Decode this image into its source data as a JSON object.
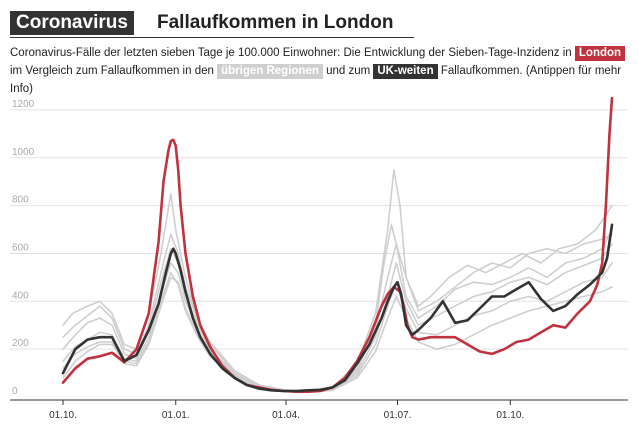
{
  "header": {
    "badge": "Coronavirus",
    "title": "Fallaufkommen in London"
  },
  "subtitle": {
    "part1": "Coronavirus-Fälle der letzten sieben Tage je 100.000 Einwohner: Die Entwicklung der Sieben-Tage-Inzidenz in",
    "london": "London",
    "part2": "im Vergleich zum Fallaufkommen in den",
    "regions": "übrigen Regionen",
    "part3": "und zum",
    "uk": "UK-weiten",
    "part4": "Fallaufkommen. (Antippen für mehr Info)"
  },
  "colors": {
    "london": "#c0323e",
    "regions": "#cfcfcf",
    "uk": "#333333",
    "grid": "#e2e2e2"
  },
  "chart_data": {
    "type": "line",
    "ylim": [
      0,
      1300
    ],
    "yticks": [
      0,
      200,
      400,
      600,
      800,
      1000,
      1200
    ],
    "xlim": [
      0,
      448
    ],
    "xticks": [
      {
        "x": 0,
        "label": "01.10."
      },
      {
        "x": 92,
        "label": "01.01."
      },
      {
        "x": 182,
        "label": "01.04."
      },
      {
        "x": 273,
        "label": "01.07."
      },
      {
        "x": 365,
        "label": "01.10."
      }
    ],
    "series": [
      {
        "name": "London",
        "role": "london",
        "x": [
          0,
          10,
          20,
          30,
          40,
          50,
          60,
          70,
          78,
          82,
          86,
          88,
          90,
          92,
          94,
          96,
          100,
          106,
          112,
          120,
          130,
          140,
          150,
          160,
          170,
          180,
          190,
          200,
          210,
          220,
          230,
          240,
          250,
          260,
          265,
          270,
          275,
          278,
          281,
          285,
          290,
          300,
          310,
          320,
          330,
          340,
          350,
          360,
          370,
          380,
          390,
          400,
          410,
          420,
          430,
          436,
          440,
          443,
          446,
          448
        ],
        "y": [
          60,
          120,
          160,
          170,
          185,
          145,
          200,
          350,
          650,
          900,
          1030,
          1070,
          1075,
          1050,
          950,
          800,
          600,
          420,
          300,
          210,
          130,
          80,
          50,
          40,
          30,
          25,
          22,
          22,
          25,
          40,
          80,
          150,
          250,
          380,
          430,
          460,
          440,
          380,
          300,
          250,
          240,
          250,
          250,
          250,
          220,
          190,
          180,
          200,
          230,
          240,
          270,
          300,
          290,
          350,
          400,
          470,
          560,
          800,
          1100,
          1250
        ]
      },
      {
        "name": "UK-weiten",
        "role": "uk",
        "x": [
          0,
          10,
          20,
          30,
          40,
          50,
          60,
          70,
          78,
          84,
          88,
          90,
          92,
          96,
          100,
          106,
          112,
          120,
          130,
          140,
          150,
          160,
          170,
          180,
          190,
          200,
          210,
          220,
          230,
          240,
          250,
          260,
          265,
          270,
          273,
          276,
          280,
          285,
          290,
          300,
          310,
          320,
          330,
          340,
          350,
          360,
          370,
          380,
          390,
          400,
          410,
          420,
          430,
          436,
          440,
          444,
          448
        ],
        "y": [
          100,
          200,
          240,
          250,
          250,
          150,
          175,
          280,
          390,
          520,
          600,
          620,
          600,
          530,
          440,
          330,
          250,
          180,
          120,
          80,
          50,
          35,
          28,
          25,
          25,
          28,
          30,
          40,
          70,
          140,
          220,
          330,
          400,
          460,
          480,
          430,
          300,
          260,
          280,
          330,
          400,
          310,
          320,
          370,
          420,
          420,
          450,
          480,
          410,
          360,
          380,
          430,
          470,
          500,
          520,
          580,
          720
        ]
      },
      {
        "role": "regions",
        "x": [
          0,
          8,
          20,
          30,
          40,
          50,
          60,
          70,
          80,
          88,
          92,
          100,
          110,
          120,
          140,
          160,
          180,
          200,
          220,
          240,
          255,
          265,
          270,
          275,
          280,
          290,
          300,
          315,
          330,
          345,
          360,
          375,
          390,
          405,
          420,
          435,
          448
        ],
        "y": [
          300,
          350,
          380,
          400,
          350,
          220,
          200,
          350,
          600,
          850,
          700,
          500,
          320,
          230,
          110,
          50,
          30,
          25,
          40,
          140,
          350,
          700,
          950,
          800,
          500,
          380,
          420,
          500,
          550,
          520,
          560,
          600,
          560,
          620,
          640,
          700,
          800
        ]
      },
      {
        "role": "regions",
        "x": [
          0,
          10,
          20,
          30,
          40,
          50,
          60,
          70,
          80,
          88,
          94,
          100,
          110,
          120,
          140,
          160,
          180,
          200,
          220,
          240,
          255,
          262,
          268,
          272,
          280,
          290,
          305,
          320,
          335,
          350,
          365,
          380,
          395,
          410,
          425,
          440,
          448
        ],
        "y": [
          200,
          260,
          310,
          330,
          300,
          180,
          160,
          280,
          480,
          620,
          560,
          430,
          300,
          200,
          95,
          45,
          28,
          24,
          35,
          110,
          300,
          560,
          720,
          640,
          420,
          330,
          380,
          450,
          480,
          470,
          500,
          540,
          500,
          560,
          580,
          620,
          700
        ]
      },
      {
        "role": "regions",
        "x": [
          0,
          10,
          20,
          30,
          40,
          50,
          60,
          70,
          80,
          88,
          94,
          100,
          110,
          120,
          140,
          160,
          180,
          200,
          220,
          240,
          255,
          265,
          272,
          280,
          290,
          305,
          320,
          335,
          350,
          365,
          380,
          395,
          410,
          425,
          440,
          448
        ],
        "y": [
          150,
          210,
          240,
          270,
          260,
          160,
          150,
          250,
          430,
          560,
          520,
          400,
          280,
          190,
          90,
          42,
          26,
          22,
          32,
          100,
          250,
          420,
          560,
          400,
          300,
          340,
          380,
          420,
          440,
          480,
          500,
          470,
          520,
          550,
          580,
          640
        ]
      },
      {
        "role": "regions",
        "x": [
          0,
          10,
          20,
          30,
          40,
          50,
          60,
          70,
          80,
          88,
          94,
          100,
          110,
          120,
          140,
          160,
          180,
          200,
          220,
          240,
          255,
          265,
          272,
          280,
          290,
          305,
          320,
          335,
          350,
          365,
          380,
          395,
          410,
          425,
          440,
          448
        ],
        "y": [
          80,
          150,
          190,
          220,
          220,
          150,
          140,
          230,
          400,
          520,
          470,
          360,
          250,
          170,
          80,
          38,
          24,
          20,
          28,
          80,
          190,
          330,
          420,
          330,
          230,
          200,
          220,
          260,
          300,
          330,
          360,
          380,
          400,
          420,
          440,
          460
        ]
      },
      {
        "role": "regions",
        "x": [
          0,
          10,
          20,
          30,
          40,
          50,
          60,
          70,
          80,
          88,
          94,
          100,
          110,
          120,
          140,
          160,
          180,
          200,
          220,
          240,
          255,
          265,
          272,
          280,
          290,
          305,
          320,
          335,
          350,
          365,
          380,
          395,
          410,
          425,
          440,
          448
        ],
        "y": [
          120,
          180,
          210,
          230,
          230,
          140,
          130,
          220,
          380,
          500,
          480,
          370,
          260,
          180,
          85,
          40,
          25,
          22,
          30,
          90,
          220,
          380,
          480,
          370,
          270,
          260,
          300,
          340,
          360,
          400,
          420,
          400,
          440,
          480,
          500,
          560
        ]
      },
      {
        "role": "regions",
        "x": [
          0,
          10,
          20,
          30,
          40,
          50,
          60,
          70,
          80,
          88,
          94,
          100,
          110,
          120,
          140,
          160,
          180,
          200,
          220,
          240,
          255,
          265,
          272,
          280,
          290,
          305,
          320,
          335,
          350,
          365,
          380,
          395,
          410,
          425,
          440,
          448
        ],
        "y": [
          250,
          300,
          340,
          380,
          330,
          200,
          180,
          300,
          520,
          680,
          600,
          460,
          320,
          220,
          100,
          48,
          28,
          23,
          38,
          120,
          280,
          500,
          640,
          500,
          360,
          400,
          460,
          520,
          560,
          540,
          600,
          620,
          600,
          640,
          660,
          680
        ]
      }
    ]
  }
}
